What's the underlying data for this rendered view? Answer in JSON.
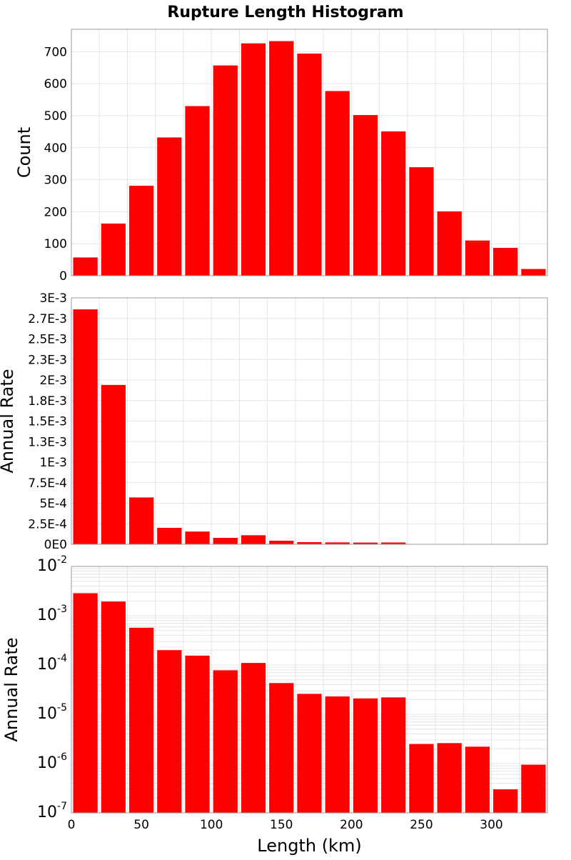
{
  "title": "Rupture Length Histogram",
  "colors": {
    "bar": "#ff0000",
    "background": "#ffffff",
    "grid": "#e4e4e4",
    "axis": "#999999",
    "text": "#000000"
  },
  "chart_data": [
    {
      "type": "bar",
      "panel": "count",
      "title": "Rupture Length Histogram",
      "xlabel": "",
      "ylabel": "Count",
      "bin_width": 20,
      "x": [
        0,
        20,
        40,
        60,
        80,
        100,
        120,
        140,
        160,
        180,
        200,
        220,
        240,
        260,
        280,
        300,
        320
      ],
      "values": [
        57,
        163,
        281,
        432,
        530,
        657,
        726,
        733,
        694,
        577,
        502,
        451,
        339,
        201,
        110,
        87,
        21
      ],
      "xlim": [
        0,
        340
      ],
      "ylim": [
        0,
        770
      ],
      "yticks": [
        0,
        100,
        200,
        300,
        400,
        500,
        600,
        700
      ],
      "ytick_labels": [
        "0",
        "100",
        "200",
        "300",
        "400",
        "500",
        "600",
        "700"
      ],
      "yscale": "linear",
      "grid": true
    },
    {
      "type": "bar",
      "panel": "rate-linear",
      "xlabel": "",
      "ylabel": "Annual Rate",
      "bin_width": 20,
      "x": [
        0,
        20,
        40,
        60,
        80,
        100,
        120,
        140,
        160,
        180,
        200,
        220,
        240,
        260,
        280,
        300,
        320
      ],
      "values": [
        0.00286,
        0.00194,
        0.00057,
        0.0002,
        0.000155,
        7.8e-05,
        0.00011,
        4.3e-05,
        2.6e-05,
        2.3e-05,
        2.1e-05,
        2.2e-05,
        2.5e-06,
        2.6e-06,
        2.2e-06,
        3e-07,
        9.5e-07
      ],
      "xlim": [
        0,
        340
      ],
      "ylim": [
        0,
        0.003
      ],
      "yticks": [
        0,
        0.00025,
        0.0005,
        0.00075,
        0.001,
        0.00125,
        0.0015,
        0.00175,
        0.002,
        0.00225,
        0.0025,
        0.00275,
        0.003
      ],
      "ytick_labels": [
        "0E0",
        "2.5E-4",
        "5E-4",
        "7.5E-4",
        "1E-3",
        "1.3E-3",
        "1.5E-3",
        "1.8E-3",
        "2E-3",
        "2.3E-3",
        "2.5E-3",
        "2.7E-3",
        "3E-3"
      ],
      "yscale": "linear",
      "grid": true
    },
    {
      "type": "bar",
      "panel": "rate-log",
      "xlabel": "Length (km)",
      "ylabel": "Annual Rate",
      "bin_width": 20,
      "x": [
        0,
        20,
        40,
        60,
        80,
        100,
        120,
        140,
        160,
        180,
        200,
        220,
        240,
        260,
        280,
        300,
        320
      ],
      "values": [
        0.00286,
        0.00194,
        0.00057,
        0.0002,
        0.000155,
        7.8e-05,
        0.00011,
        4.3e-05,
        2.6e-05,
        2.3e-05,
        2.1e-05,
        2.2e-05,
        2.5e-06,
        2.6e-06,
        2.2e-06,
        3e-07,
        9.5e-07
      ],
      "xlim": [
        0,
        340
      ],
      "ylim": [
        1e-07,
        0.01
      ],
      "yticks": [
        1e-07,
        1e-06,
        1e-05,
        0.0001,
        0.001,
        0.01
      ],
      "ytick_labels": [
        {
          "base": "10",
          "exp": "-7"
        },
        {
          "base": "10",
          "exp": "-6"
        },
        {
          "base": "10",
          "exp": "-5"
        },
        {
          "base": "10",
          "exp": "-4"
        },
        {
          "base": "10",
          "exp": "-3"
        },
        {
          "base": "10",
          "exp": "-2"
        }
      ],
      "xticks": [
        0,
        50,
        100,
        150,
        200,
        250,
        300
      ],
      "xtick_labels": [
        "0",
        "50",
        "100",
        "150",
        "200",
        "250",
        "300"
      ],
      "yscale": "log",
      "grid": true
    }
  ]
}
